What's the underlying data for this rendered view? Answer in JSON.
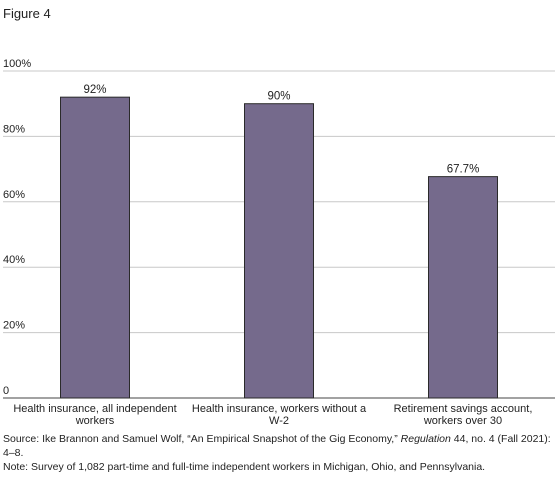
{
  "figure_label": "Figure 4",
  "chart_data": {
    "type": "bar",
    "categories": [
      [
        "Health insurance, all independent",
        "workers"
      ],
      [
        "Health insurance, workers without a",
        "W-2"
      ],
      [
        "Retirement savings account,",
        "workers over 30"
      ]
    ],
    "values": [
      92,
      90,
      67.7
    ],
    "data_labels": [
      "92%",
      "90%",
      "67.7%"
    ],
    "y_ticks": [
      {
        "value": 0,
        "label": "0"
      },
      {
        "value": 20,
        "label": "20%"
      },
      {
        "value": 40,
        "label": "40%"
      },
      {
        "value": 60,
        "label": "60%"
      },
      {
        "value": 80,
        "label": "80%"
      },
      {
        "value": 100,
        "label": "100%"
      }
    ],
    "ylim": [
      0,
      100
    ],
    "grid": true,
    "bar_color": "#756a8c",
    "grid_color": "#c8c8c8"
  },
  "source": {
    "prefix": "Source: Ike Brannon and Samuel Wolf, “An Empirical Snapshot of the Gig Economy,” ",
    "journal": "Regulation",
    "suffix": " 44, no. 4 (Fall 2021): 4–8."
  },
  "note": "Note: Survey of 1,082 part-time and full-time independent workers in Michigan, Ohio, and Pennsylvania."
}
